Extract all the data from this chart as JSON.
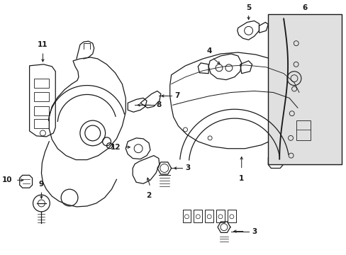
{
  "bg_color": "#ffffff",
  "line_color": "#1a1a1a",
  "shade_color": "#d8d8d8",
  "box_shade": "#e0e0e0",
  "figsize": [
    4.89,
    3.6
  ],
  "dpi": 100,
  "xlim": [
    0,
    489
  ],
  "ylim": [
    0,
    360
  ]
}
